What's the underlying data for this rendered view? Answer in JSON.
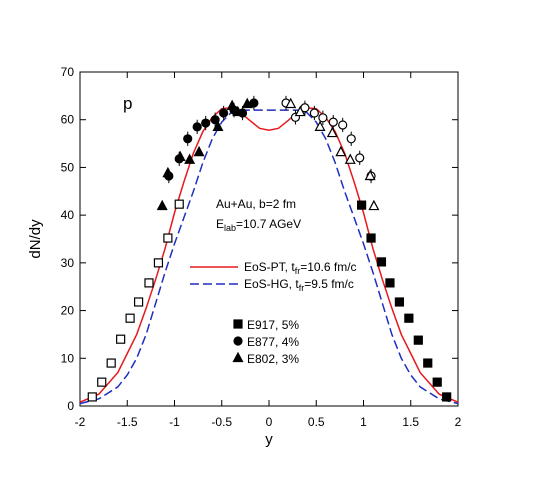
{
  "chart_data": {
    "type": "scatter",
    "x_label": "y",
    "y_label": "dN/dy",
    "xlim": [
      -2,
      2
    ],
    "ylim": [
      0,
      70
    ],
    "xticks": [
      -2,
      -1.5,
      -1,
      -0.5,
      0,
      0.5,
      1,
      1.5,
      2
    ],
    "yticks": [
      0,
      10,
      20,
      30,
      40,
      50,
      60,
      70
    ],
    "annotations": {
      "particle": "p",
      "system": "Au+Au, b=2 fm",
      "energy": [
        "E",
        "lab",
        "=10.7 AGeV"
      ]
    },
    "curves": [
      {
        "name": [
          "EoS-PT, t",
          "fr",
          "=10.6 fm/c"
        ],
        "color": "#e8191c",
        "dashed": false,
        "x": [
          -2,
          -1.8,
          -1.6,
          -1.5,
          -1.4,
          -1.3,
          -1.2,
          -1.1,
          -1.0,
          -0.9,
          -0.8,
          -0.7,
          -0.6,
          -0.5,
          -0.4,
          -0.3,
          -0.2,
          -0.1,
          0,
          0.1,
          0.2,
          0.3,
          0.4,
          0.5,
          0.6,
          0.7,
          0.8,
          0.9,
          1.0,
          1.1,
          1.2,
          1.3,
          1.4,
          1.5,
          1.6,
          1.8,
          2
        ],
        "values": [
          0.8,
          2.5,
          7,
          11,
          15,
          20.5,
          26.5,
          33,
          40.5,
          47,
          53,
          57.5,
          60.5,
          62.3,
          62.5,
          61.5,
          59.8,
          58.2,
          57.8,
          58.2,
          59.8,
          61.5,
          62.5,
          62.3,
          60.5,
          57.5,
          53,
          47,
          40.5,
          33,
          26.5,
          20.5,
          15,
          11,
          7,
          2.5,
          0.8
        ]
      },
      {
        "name": [
          "EoS-HG, t",
          "fr",
          "=9.5 fm/c"
        ],
        "color": "#1f2fbf",
        "dashed": true,
        "x": [
          -2,
          -1.8,
          -1.6,
          -1.5,
          -1.4,
          -1.3,
          -1.2,
          -1.1,
          -1.0,
          -0.9,
          -0.8,
          -0.7,
          -0.6,
          -0.5,
          -0.4,
          -0.3,
          -0.2,
          -0.1,
          0,
          0.1,
          0.2,
          0.3,
          0.4,
          0.5,
          0.6,
          0.7,
          0.8,
          0.9,
          1.0,
          1.1,
          1.2,
          1.3,
          1.4,
          1.5,
          1.6,
          1.8,
          2
        ],
        "values": [
          0.5,
          1.5,
          4,
          6.5,
          10,
          15,
          21.5,
          28,
          34,
          39.5,
          45,
          51,
          56,
          59.5,
          61.5,
          62,
          62,
          62,
          62,
          62,
          62,
          62,
          61.5,
          59.5,
          56,
          51,
          45,
          39.5,
          34,
          28,
          21.5,
          15,
          10,
          6.5,
          4,
          1.5,
          0.5
        ]
      }
    ],
    "series": [
      {
        "name": "E917, 5%",
        "marker": "square",
        "color": "#000000",
        "x": [
          0.98,
          1.08,
          1.19,
          1.28,
          1.38,
          1.48,
          1.58,
          1.68,
          1.78,
          1.88
        ],
        "values": [
          42.1,
          35.2,
          30.2,
          25.8,
          21.8,
          18.4,
          13.8,
          9.0,
          5.0,
          1.9
        ],
        "x_reflected": [
          -0.95,
          -1.07,
          -1.17,
          -1.27,
          -1.38,
          -1.47,
          -1.57,
          -1.67,
          -1.77,
          -1.87
        ],
        "values_reflected": [
          42.3,
          35.2,
          30.0,
          25.8,
          21.8,
          18.4,
          14.0,
          9.0,
          5.0,
          1.9
        ]
      },
      {
        "name": "E877, 4%",
        "marker": "circle",
        "color": "#000000",
        "x": [
          -1.06,
          -0.95,
          -0.86,
          -0.76,
          -0.67,
          -0.57,
          -0.48,
          -0.37,
          -0.28,
          -0.16
        ],
        "values": [
          48.2,
          51.8,
          56,
          58.5,
          59.3,
          60,
          61.4,
          62,
          61.4,
          63.5
        ],
        "errors": [
          1.5,
          1.5,
          1.5,
          1.5,
          1.5,
          1.5,
          1.5,
          1.5,
          1.5,
          1.5
        ],
        "x_reflected": [
          0.18,
          0.28,
          0.38,
          0.48,
          0.57,
          0.68,
          0.78,
          0.87,
          0.96,
          1.08
        ],
        "values_reflected": [
          63.5,
          60.5,
          62.5,
          61.4,
          60.4,
          59.5,
          58.9,
          56,
          52,
          48.2
        ],
        "errors_reflected": [
          1.5,
          1.5,
          1.5,
          1.5,
          1.5,
          1.5,
          1.5,
          1.5,
          1.5,
          1.5
        ]
      },
      {
        "name": "E802, 3%",
        "marker": "triangle",
        "color": "#000000",
        "x": [
          -1.13,
          -1.07,
          -0.94,
          -0.84,
          -0.74,
          -0.54,
          -0.39,
          -0.33,
          -0.23
        ],
        "values": [
          41.9,
          48.8,
          52.2,
          51.6,
          53.2,
          58.5,
          62.9,
          61.6,
          63.3
        ],
        "x_reflected": [
          0.23,
          0.33,
          0.54,
          0.67,
          0.76,
          0.86,
          1.07,
          1.11
        ],
        "values_reflected": [
          63.3,
          61.6,
          58.5,
          57.2,
          53.2,
          51.6,
          48.2,
          41.9
        ]
      }
    ]
  }
}
